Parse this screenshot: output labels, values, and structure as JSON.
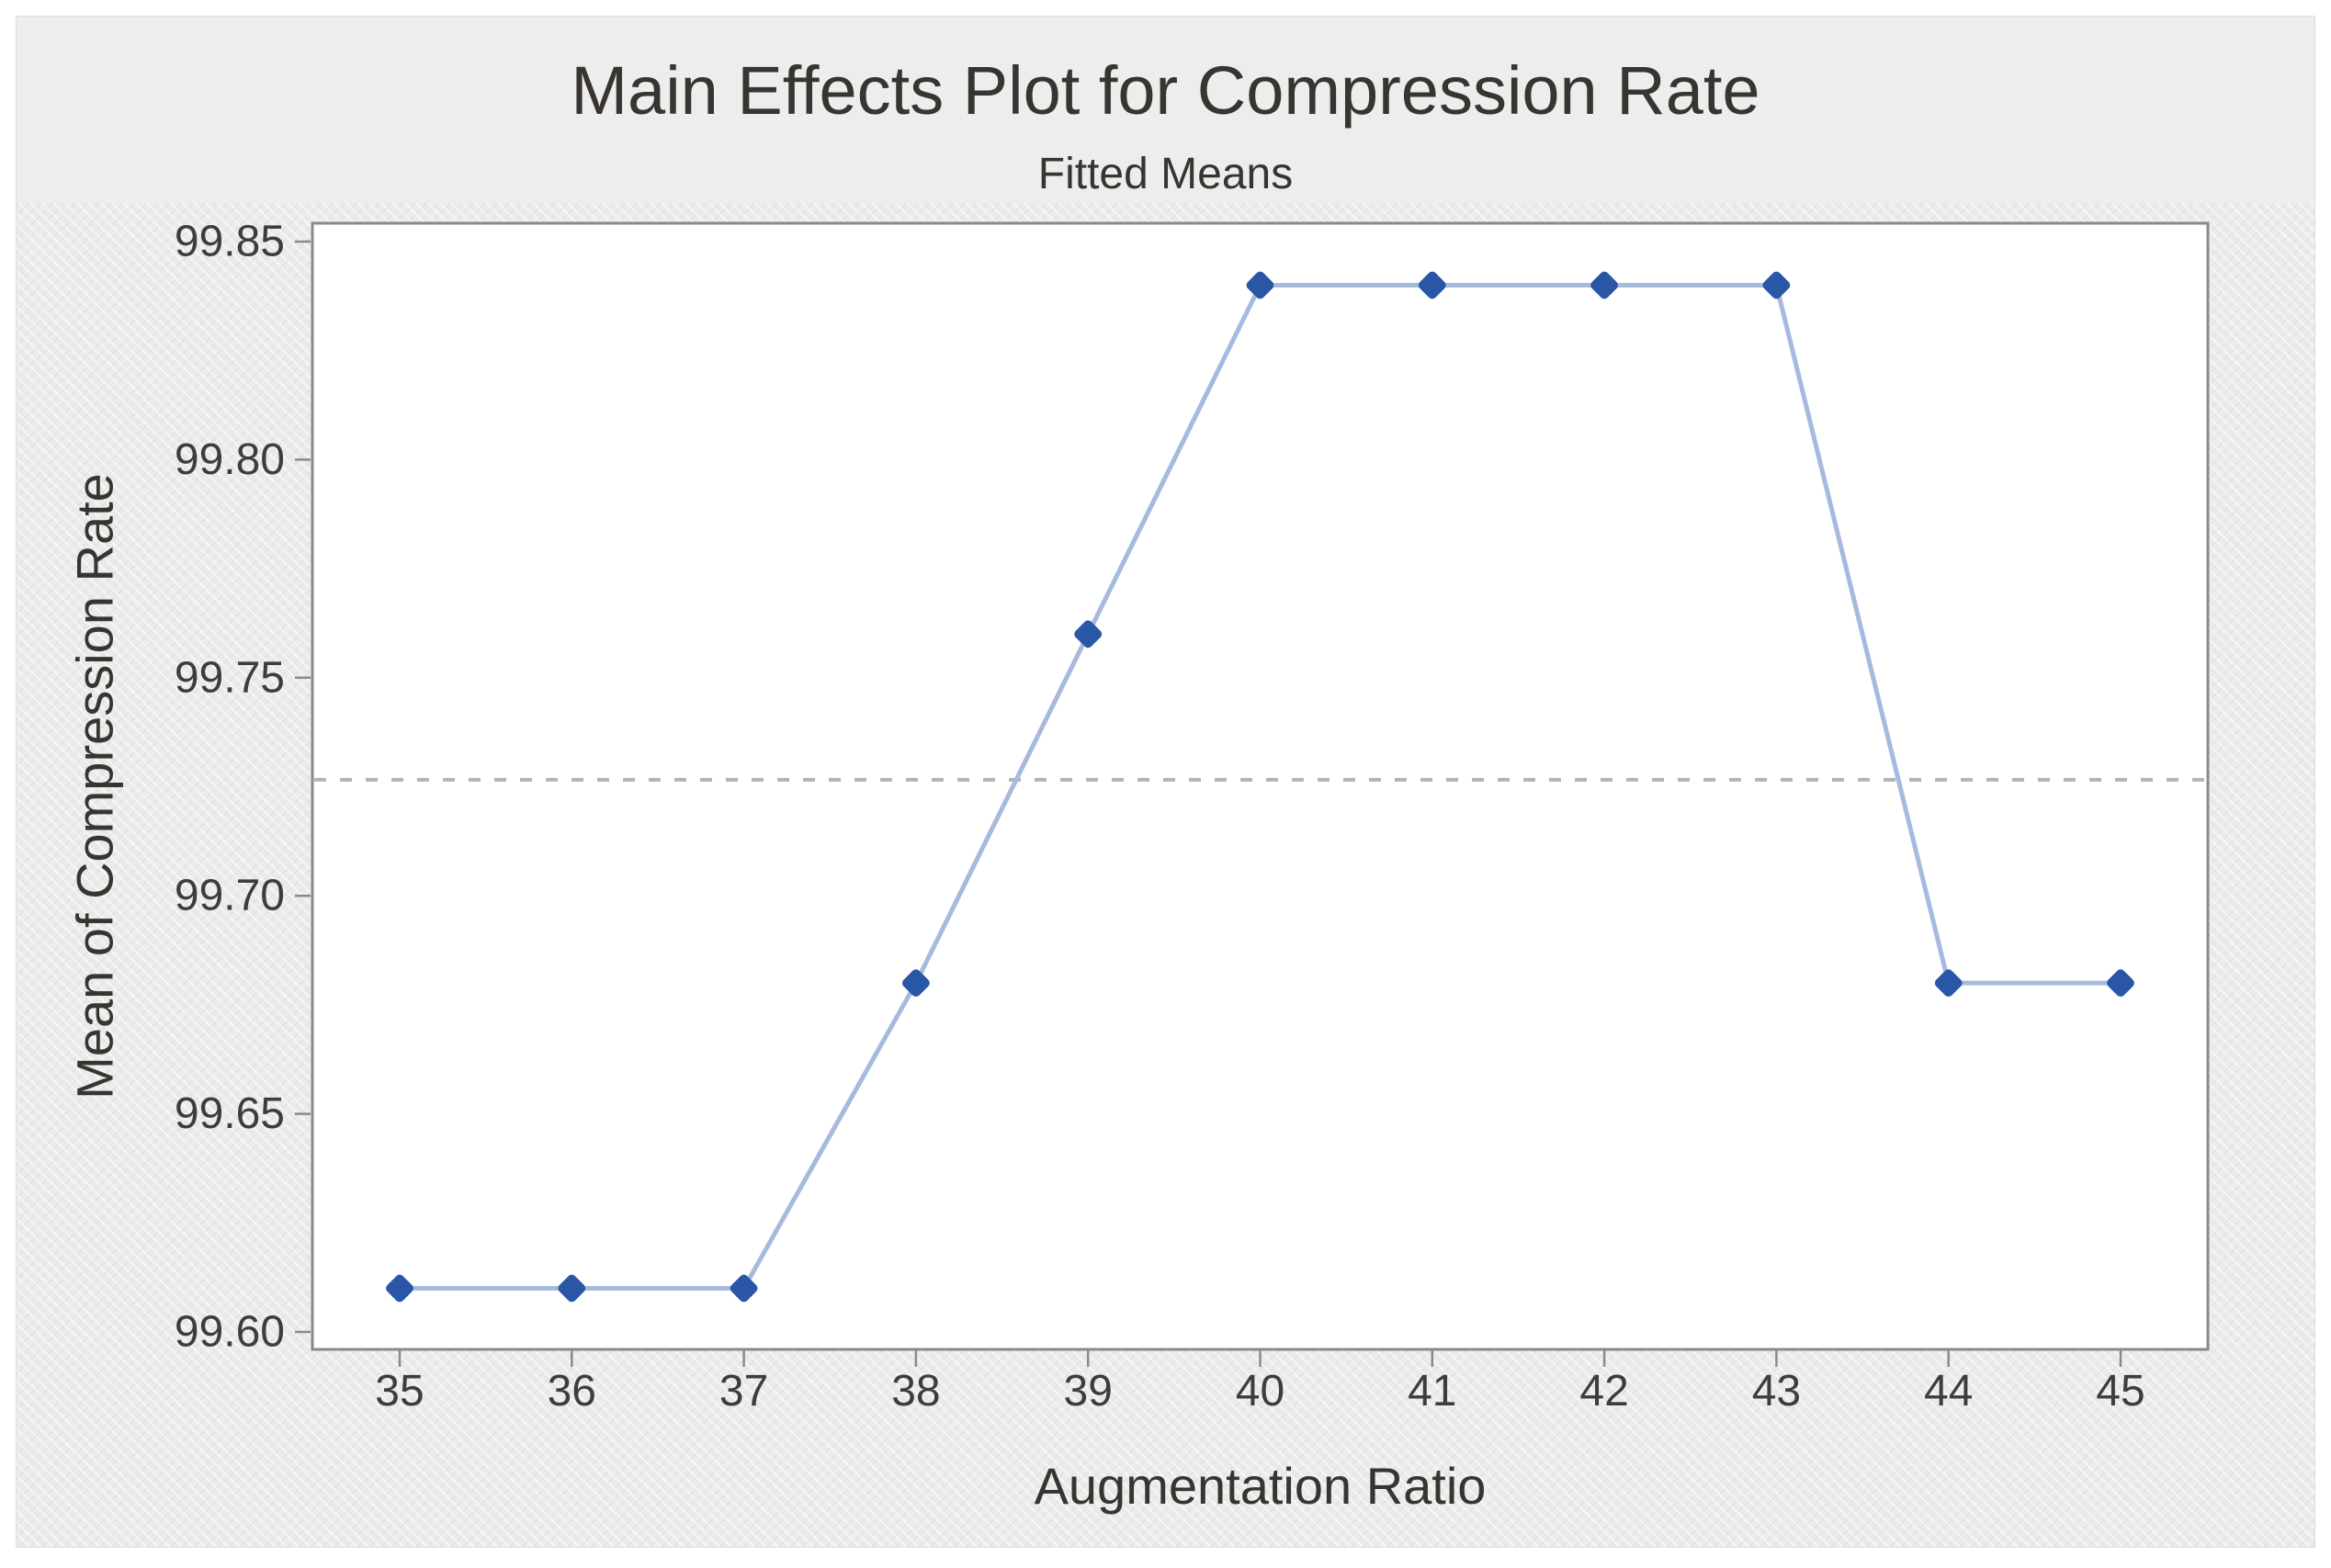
{
  "chart_data": {
    "type": "line",
    "title": "Main Effects Plot for Compression Rate",
    "subtitle": "Fitted Means",
    "xlabel": "Augmentation Ratio",
    "ylabel": "Mean of Compression Rate",
    "categories": [
      35,
      36,
      37,
      38,
      39,
      40,
      41,
      42,
      43,
      44,
      45
    ],
    "x_tick_labels": [
      "35",
      "36",
      "37",
      "38",
      "39",
      "40",
      "41",
      "42",
      "43",
      "44",
      "45"
    ],
    "series": [
      {
        "name": "Fitted Means",
        "values": [
          99.61,
          99.61,
          99.61,
          99.68,
          99.76,
          99.84,
          99.84,
          99.84,
          99.84,
          99.68,
          99.68
        ]
      }
    ],
    "reference_line": {
      "value": 99.7266,
      "style": "dashed"
    },
    "ylim": [
      99.6,
      99.85
    ],
    "y_ticks": [
      99.85,
      99.8,
      99.75,
      99.7,
      99.65,
      99.6
    ],
    "y_tick_labels": [
      "99.85",
      "99.80",
      "99.75",
      "99.70",
      "99.65",
      "99.60"
    ],
    "grid": false,
    "legend": "none",
    "marker": "diamond",
    "colors": {
      "marker": "#2a57a5",
      "line": "#a6badd",
      "reference_line": "#b3b3b3",
      "plot_border": "#8a8a8a",
      "tick": "#8a8a8a",
      "text": "#3f3c3a",
      "figure_bg": "#ececec",
      "plot_bg": "#ffffff"
    }
  }
}
